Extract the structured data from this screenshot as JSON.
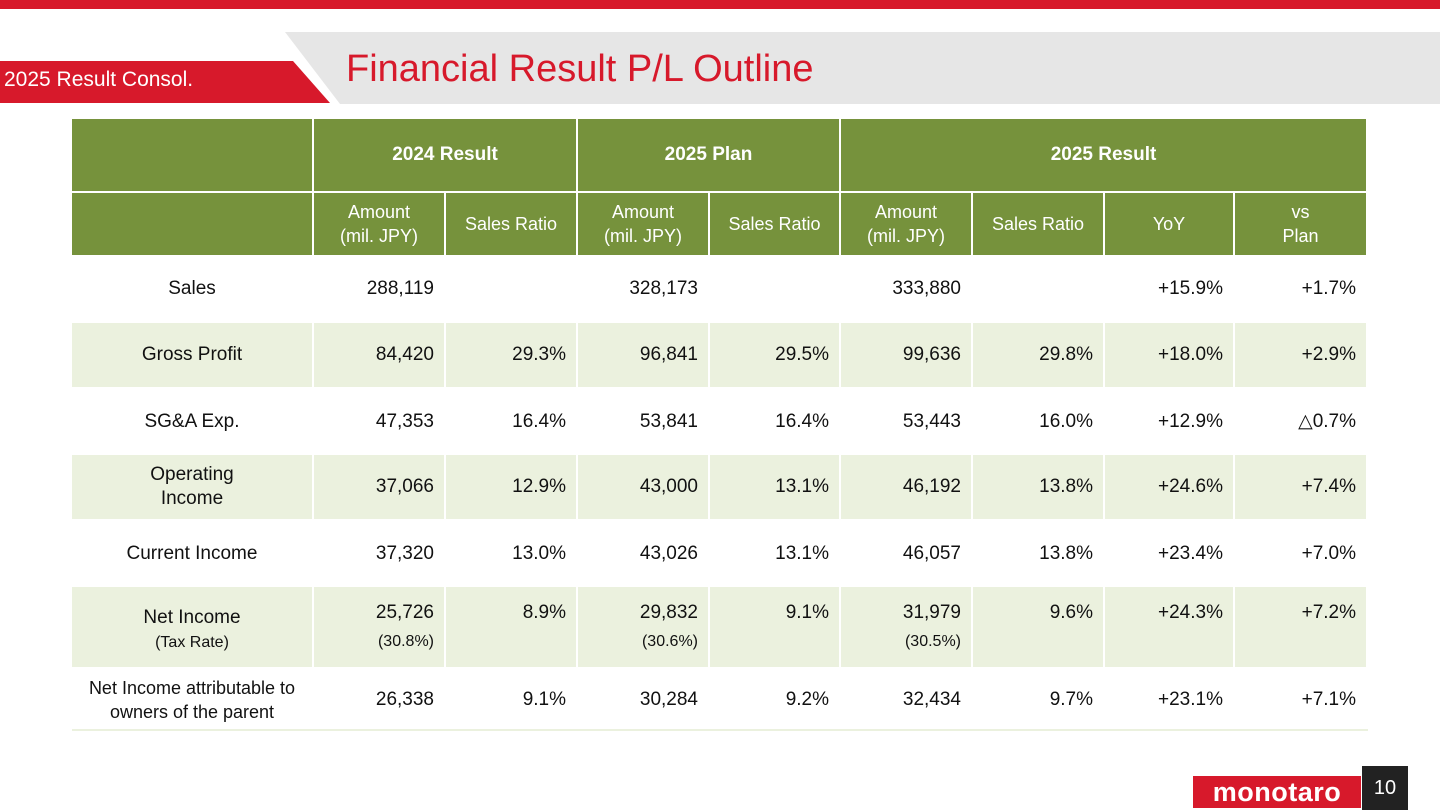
{
  "header": {
    "section_tag": "2025 Result Consol.",
    "title": "Financial Result P/L Outline"
  },
  "table": {
    "groups": [
      "2024 Result",
      "2025 Plan",
      "2025 Result"
    ],
    "columns": [
      [
        "Amount",
        "(mil. JPY)"
      ],
      [
        "Sales Ratio"
      ],
      [
        "Amount",
        "(mil. JPY)"
      ],
      [
        "Sales Ratio"
      ],
      [
        "Amount",
        "(mil. JPY)"
      ],
      [
        "Sales Ratio"
      ],
      [
        "YoY"
      ],
      [
        "vs",
        "Plan"
      ]
    ],
    "rows": [
      {
        "label": "Sales",
        "cells": [
          "288,119",
          "",
          "328,173",
          "",
          "333,880",
          "",
          "+15.9%",
          "+1.7%"
        ]
      },
      {
        "label": "Gross Profit",
        "cells": [
          "84,420",
          "29.3%",
          "96,841",
          "29.5%",
          "99,636",
          "29.8%",
          "+18.0%",
          "+2.9%"
        ]
      },
      {
        "label": "SG&A Exp.",
        "cells": [
          "47,353",
          "16.4%",
          "53,841",
          "16.4%",
          "53,443",
          "16.0%",
          "+12.9%",
          "△0.7%"
        ]
      },
      {
        "label": "Operating\nIncome",
        "cells": [
          "37,066",
          "12.9%",
          "43,000",
          "13.1%",
          "46,192",
          "13.8%",
          "+24.6%",
          "+7.4%"
        ]
      },
      {
        "label": "Current Income",
        "cells": [
          "37,320",
          "13.0%",
          "43,026",
          "13.1%",
          "46,057",
          "13.8%",
          "+23.4%",
          "+7.0%"
        ]
      },
      {
        "label": "Net Income",
        "sublabel": "(Tax Rate)",
        "cells": [
          "25,726",
          "8.9%",
          "29,832",
          "9.1%",
          "31,979",
          "9.6%",
          "+24.3%",
          "+7.2%"
        ],
        "subcells": [
          "(30.8%)",
          "",
          "(30.6%)",
          "",
          "(30.5%)",
          "",
          "",
          ""
        ]
      },
      {
        "label": "Net Income attributable to\nowners of the parent",
        "cells": [
          "26,338",
          "9.1%",
          "30,284",
          "9.2%",
          "32,434",
          "9.7%",
          "+23.1%",
          "+7.1%"
        ]
      }
    ]
  },
  "footer": {
    "logo": "monotaro",
    "page_number": "10"
  },
  "colors": {
    "brand_red": "#d7192b",
    "header_green": "#76923c",
    "row_shade": "#ebf1de"
  }
}
